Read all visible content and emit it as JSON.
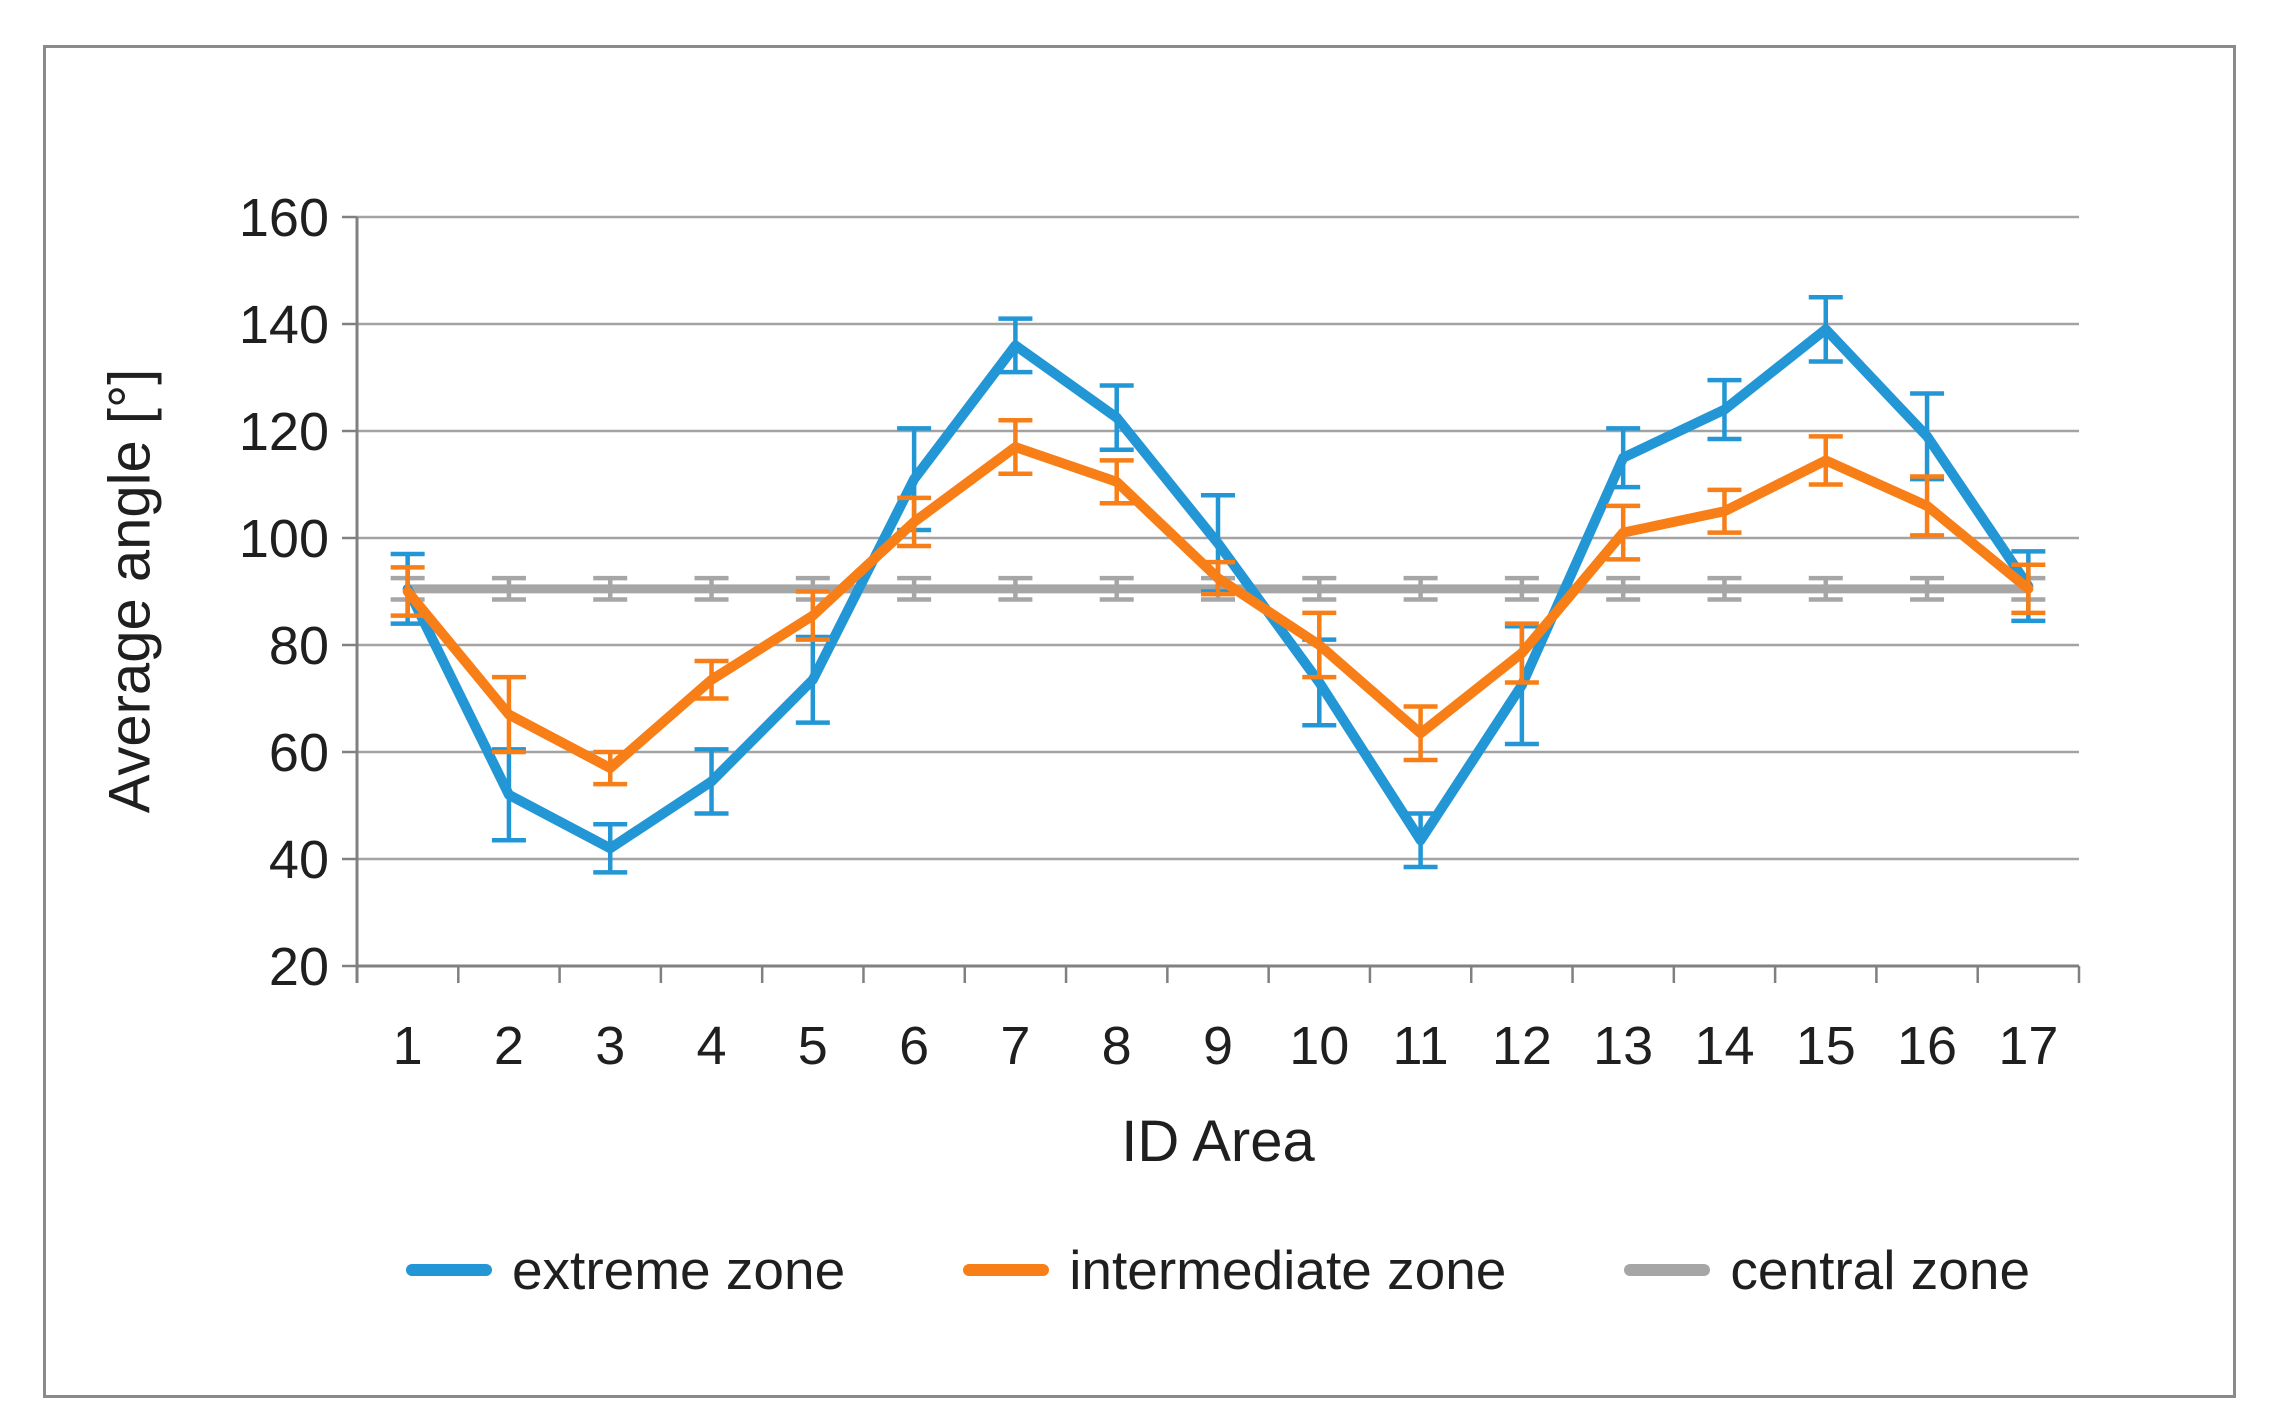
{
  "chart_data": {
    "type": "line",
    "xlabel": "ID Area",
    "ylabel": "Average angle [°]",
    "x": [
      1,
      2,
      3,
      4,
      5,
      6,
      7,
      8,
      9,
      10,
      11,
      12,
      13,
      14,
      15,
      16,
      17
    ],
    "xticks": [
      1,
      2,
      3,
      4,
      5,
      6,
      7,
      8,
      9,
      10,
      11,
      12,
      13,
      14,
      15,
      16,
      17
    ],
    "yticks": [
      20,
      40,
      60,
      80,
      100,
      120,
      140,
      160
    ],
    "ylim": [
      20,
      160
    ],
    "grid": true,
    "legend_position": "bottom",
    "draw_order": [
      2,
      0,
      1
    ],
    "colors": {
      "gridline": "#a3a3a3",
      "axis": "#808080",
      "text": "#1f1f1f",
      "frame_border": "#8a8a8a"
    },
    "series": [
      {
        "name": "extreme zone",
        "color": "#2396d6",
        "line_width": 10,
        "values": [
          90.5,
          52,
          42,
          54.5,
          73.5,
          111,
          136,
          122.5,
          99,
          73,
          43.5,
          72.5,
          115,
          124,
          139,
          119,
          91
        ],
        "errors": [
          6.5,
          8.5,
          4.5,
          6,
          8,
          9.5,
          5,
          6,
          9,
          8,
          5,
          11,
          5.5,
          5.5,
          6,
          8,
          6.5
        ]
      },
      {
        "name": "intermediate zone",
        "color": "#f87f17",
        "line_width": 10,
        "values": [
          90,
          67,
          57,
          73.5,
          85.5,
          103,
          117,
          110.5,
          92.5,
          80,
          63.5,
          78.5,
          101,
          105,
          114.5,
          106,
          90.5
        ],
        "errors": [
          4.5,
          7,
          3,
          3.5,
          4.5,
          4.5,
          5,
          4,
          3,
          6,
          5,
          5.5,
          5,
          4,
          4.5,
          5.5,
          4.5
        ]
      },
      {
        "name": "central zone",
        "color": "#a6a6a6",
        "line_width": 9,
        "values": [
          90.5,
          90.5,
          90.5,
          90.5,
          90.5,
          90.5,
          90.5,
          90.5,
          90.5,
          90.5,
          90.5,
          90.5,
          90.5,
          90.5,
          90.5,
          90.5,
          90.5
        ],
        "errors": [
          2,
          2,
          2,
          2,
          2,
          2,
          2,
          2,
          2,
          2,
          2,
          2,
          2,
          2,
          2,
          2,
          2
        ]
      }
    ]
  }
}
